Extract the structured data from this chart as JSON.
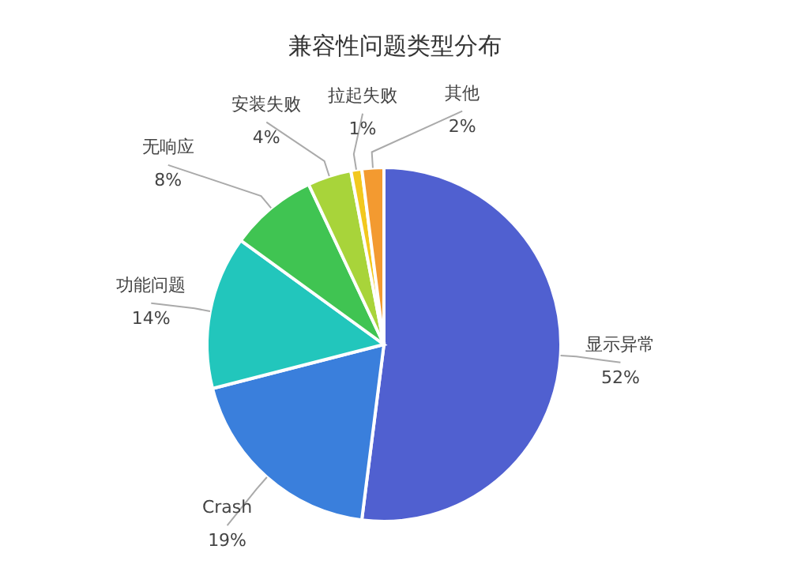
{
  "chart_data": {
    "type": "pie",
    "title": "兼容性问题类型分布",
    "categories": [
      "显示异常",
      "Crash",
      "功能问题",
      "无响应",
      "安装失败",
      "拉起失败",
      "其他"
    ],
    "values": [
      52,
      19,
      14,
      8,
      4,
      1,
      2
    ],
    "colors": [
      "#5060d0",
      "#3a7fdc",
      "#22c6bc",
      "#40c452",
      "#a8d43a",
      "#f2c81e",
      "#f39a30"
    ],
    "value_labels": [
      "52%",
      "19%",
      "14%",
      "8%",
      "4%",
      "1%",
      "2%"
    ]
  }
}
